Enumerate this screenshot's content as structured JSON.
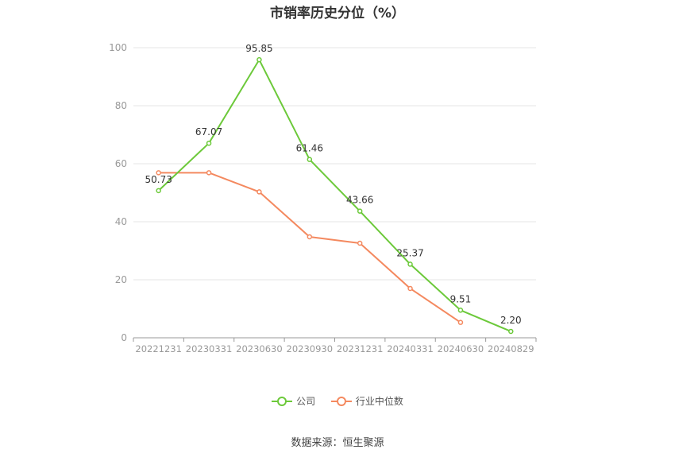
{
  "chart_data": {
    "type": "line",
    "title": "市销率历史分位（%）",
    "categories": [
      "20221231",
      "20230331",
      "20230630",
      "20230930",
      "20231231",
      "20240331",
      "20240630",
      "20240829"
    ],
    "series": [
      {
        "name": "公司",
        "color": "#6cc93a",
        "values": [
          50.73,
          67.07,
          95.85,
          61.46,
          43.66,
          25.37,
          9.51,
          2.2
        ],
        "labels": [
          "50.73",
          "67.07",
          "95.85",
          "61.46",
          "43.66",
          "25.37",
          "9.51",
          "2.20"
        ]
      },
      {
        "name": "行业中位数",
        "color": "#f4895f",
        "values": [
          56.9,
          56.9,
          50.3,
          34.8,
          32.6,
          17.0,
          5.3,
          null
        ]
      }
    ],
    "ylim": [
      0,
      100
    ],
    "yticks": [
      "0",
      "20",
      "40",
      "60",
      "80",
      "100"
    ],
    "grid": true,
    "legend_position": "bottom"
  },
  "source": "数据来源：恒生聚源"
}
